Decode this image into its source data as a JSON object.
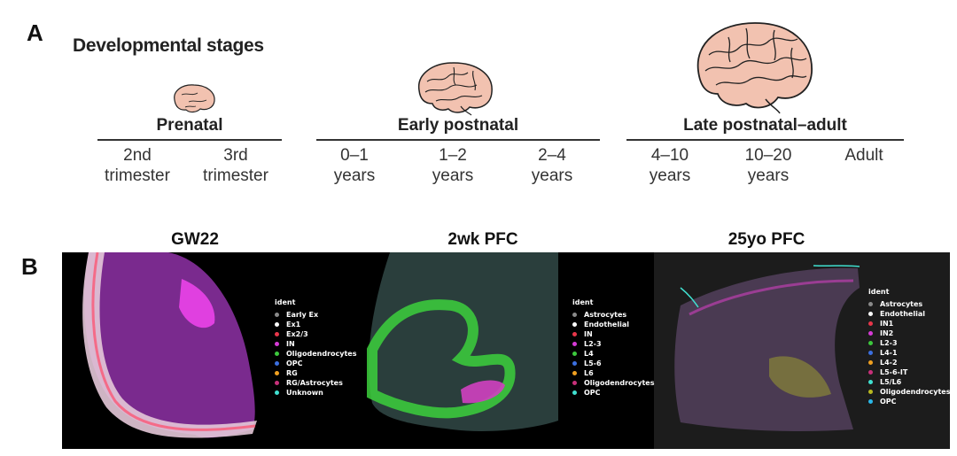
{
  "panel_a": {
    "letter": "A",
    "title": "Developmental stages",
    "groups": [
      {
        "title": "Prenatal",
        "stages": [
          {
            "line1": "2nd",
            "line2": "trimester"
          },
          {
            "line1": "3rd",
            "line2": "trimester"
          }
        ]
      },
      {
        "title": "Early postnatal",
        "stages": [
          {
            "line1": "0–1",
            "line2": "years"
          },
          {
            "line1": "1–2",
            "line2": "years"
          },
          {
            "line1": "2–4",
            "line2": "years"
          }
        ]
      },
      {
        "title": "Late postnatal–adult",
        "stages": [
          {
            "line1": "4–10",
            "line2": "years"
          },
          {
            "line1": "10–20",
            "line2": "years"
          },
          {
            "line1": "Adult",
            "line2": ""
          }
        ]
      }
    ]
  },
  "panel_b": {
    "letter": "B",
    "samples": [
      {
        "title": "GW22",
        "legend": {
          "title": "ident",
          "items": [
            {
              "label": "Early Ex",
              "color": "#8a8a8a"
            },
            {
              "label": "Ex1",
              "color": "#ffffff"
            },
            {
              "label": "Ex2/3",
              "color": "#e8364a"
            },
            {
              "label": "IN",
              "color": "#d63ad6"
            },
            {
              "label": "Oligodendrocytes",
              "color": "#3cc83c"
            },
            {
              "label": "OPC",
              "color": "#3b6fe0"
            },
            {
              "label": "RG",
              "color": "#f0a020"
            },
            {
              "label": "RG/Astrocytes",
              "color": "#c8307a"
            },
            {
              "label": "Unknown",
              "color": "#40e0d0"
            }
          ]
        }
      },
      {
        "title": "2wk PFC",
        "legend": {
          "title": "ident",
          "items": [
            {
              "label": "Astrocytes",
              "color": "#8a8a8a"
            },
            {
              "label": "Endothelial",
              "color": "#ffffff"
            },
            {
              "label": "IN",
              "color": "#e8364a"
            },
            {
              "label": "L2-3",
              "color": "#d63ad6"
            },
            {
              "label": "L4",
              "color": "#3cc83c"
            },
            {
              "label": "L5-6",
              "color": "#3b6fe0"
            },
            {
              "label": "L6",
              "color": "#f0a020"
            },
            {
              "label": "Oligodendrocytes",
              "color": "#c8307a"
            },
            {
              "label": "OPC",
              "color": "#40e0d0"
            }
          ]
        }
      },
      {
        "title": "25yo PFC",
        "legend": {
          "title": "ident",
          "items": [
            {
              "label": "Astrocytes",
              "color": "#8a8a8a"
            },
            {
              "label": "Endothelial",
              "color": "#ffffff"
            },
            {
              "label": "IN1",
              "color": "#e8364a"
            },
            {
              "label": "IN2",
              "color": "#d63ad6"
            },
            {
              "label": "L2-3",
              "color": "#3cc83c"
            },
            {
              "label": "L4-1",
              "color": "#3b6fe0"
            },
            {
              "label": "L4-2",
              "color": "#f0a020"
            },
            {
              "label": "L5-6-IT",
              "color": "#c8307a"
            },
            {
              "label": "L5/L6",
              "color": "#40e0d0"
            },
            {
              "label": "Oligodendrocytes",
              "color": "#b8b820"
            },
            {
              "label": "OPC",
              "color": "#2ab8e8"
            }
          ]
        }
      }
    ]
  },
  "colors": {
    "brain_fill": "#f2c2b0",
    "brain_stroke": "#222222",
    "tissue_background": "#000000"
  }
}
